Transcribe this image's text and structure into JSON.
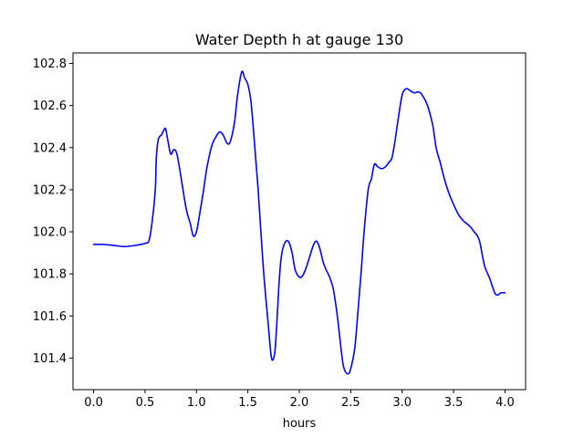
{
  "chart_data": {
    "type": "line",
    "title": "Water Depth h at gauge 130",
    "xlabel": "hours",
    "ylabel": "",
    "xlim": [
      -0.2,
      4.2
    ],
    "ylim": [
      101.25,
      102.85
    ],
    "grid": false,
    "xticks": [
      0.0,
      0.5,
      1.0,
      1.5,
      2.0,
      2.5,
      3.0,
      3.5,
      4.0
    ],
    "xtick_labels": [
      "0.0",
      "0.5",
      "1.0",
      "1.5",
      "2.0",
      "2.5",
      "3.0",
      "3.5",
      "4.0"
    ],
    "yticks": [
      101.4,
      101.6,
      101.8,
      102.0,
      102.2,
      102.4,
      102.6,
      102.8
    ],
    "ytick_labels": [
      "101.4",
      "101.6",
      "101.8",
      "102.0",
      "102.2",
      "102.4",
      "102.6",
      "102.8"
    ],
    "series": [
      {
        "color": "#0000ff",
        "x": [
          0.0,
          0.1,
          0.2,
          0.3,
          0.4,
          0.5,
          0.54,
          0.57,
          0.6,
          0.61,
          0.63,
          0.66,
          0.68,
          0.7,
          0.72,
          0.75,
          0.78,
          0.81,
          0.85,
          0.9,
          0.94,
          0.97,
          1.0,
          1.03,
          1.07,
          1.1,
          1.15,
          1.2,
          1.23,
          1.26,
          1.3,
          1.33,
          1.37,
          1.4,
          1.44,
          1.47,
          1.5,
          1.53,
          1.56,
          1.6,
          1.65,
          1.7,
          1.73,
          1.76,
          1.78,
          1.8,
          1.82,
          1.84,
          1.87,
          1.9,
          1.93,
          1.96,
          2.0,
          2.03,
          2.06,
          2.1,
          2.14,
          2.17,
          2.2,
          2.23,
          2.26,
          2.29,
          2.33,
          2.37,
          2.4,
          2.43,
          2.47,
          2.5,
          2.54,
          2.57,
          2.6,
          2.63,
          2.67,
          2.7,
          2.73,
          2.76,
          2.8,
          2.84,
          2.87,
          2.9,
          2.93,
          2.96,
          3.0,
          3.04,
          3.08,
          3.12,
          3.15,
          3.18,
          3.2,
          3.23,
          3.26,
          3.3,
          3.33,
          3.37,
          3.4,
          3.45,
          3.5,
          3.55,
          3.6,
          3.65,
          3.7,
          3.75,
          3.8,
          3.85,
          3.9,
          3.93,
          3.96,
          4.0
        ],
        "y": [
          101.94,
          101.94,
          101.935,
          101.93,
          101.935,
          101.945,
          101.96,
          102.05,
          102.2,
          102.35,
          102.44,
          102.46,
          102.48,
          102.49,
          102.44,
          102.37,
          102.39,
          102.37,
          102.26,
          102.11,
          102.04,
          101.98,
          102.0,
          102.08,
          102.2,
          102.3,
          102.41,
          102.46,
          102.475,
          102.46,
          102.42,
          102.43,
          102.52,
          102.65,
          102.76,
          102.73,
          102.7,
          102.62,
          102.45,
          102.2,
          101.83,
          101.55,
          101.4,
          101.42,
          101.55,
          101.73,
          101.86,
          101.92,
          101.955,
          101.95,
          101.9,
          101.82,
          101.785,
          101.79,
          101.82,
          101.88,
          101.94,
          101.955,
          101.92,
          101.86,
          101.82,
          101.79,
          101.73,
          101.6,
          101.47,
          101.36,
          101.325,
          101.35,
          101.45,
          101.62,
          101.8,
          102.0,
          102.2,
          102.25,
          102.32,
          102.31,
          102.3,
          102.31,
          102.33,
          102.35,
          102.43,
          102.53,
          102.65,
          102.68,
          102.67,
          102.66,
          102.665,
          102.66,
          102.645,
          102.62,
          102.58,
          102.5,
          102.4,
          102.33,
          102.27,
          102.19,
          102.13,
          102.08,
          102.05,
          102.03,
          102.0,
          101.96,
          101.84,
          101.78,
          101.71,
          101.7,
          101.71,
          101.71
        ]
      }
    ]
  }
}
